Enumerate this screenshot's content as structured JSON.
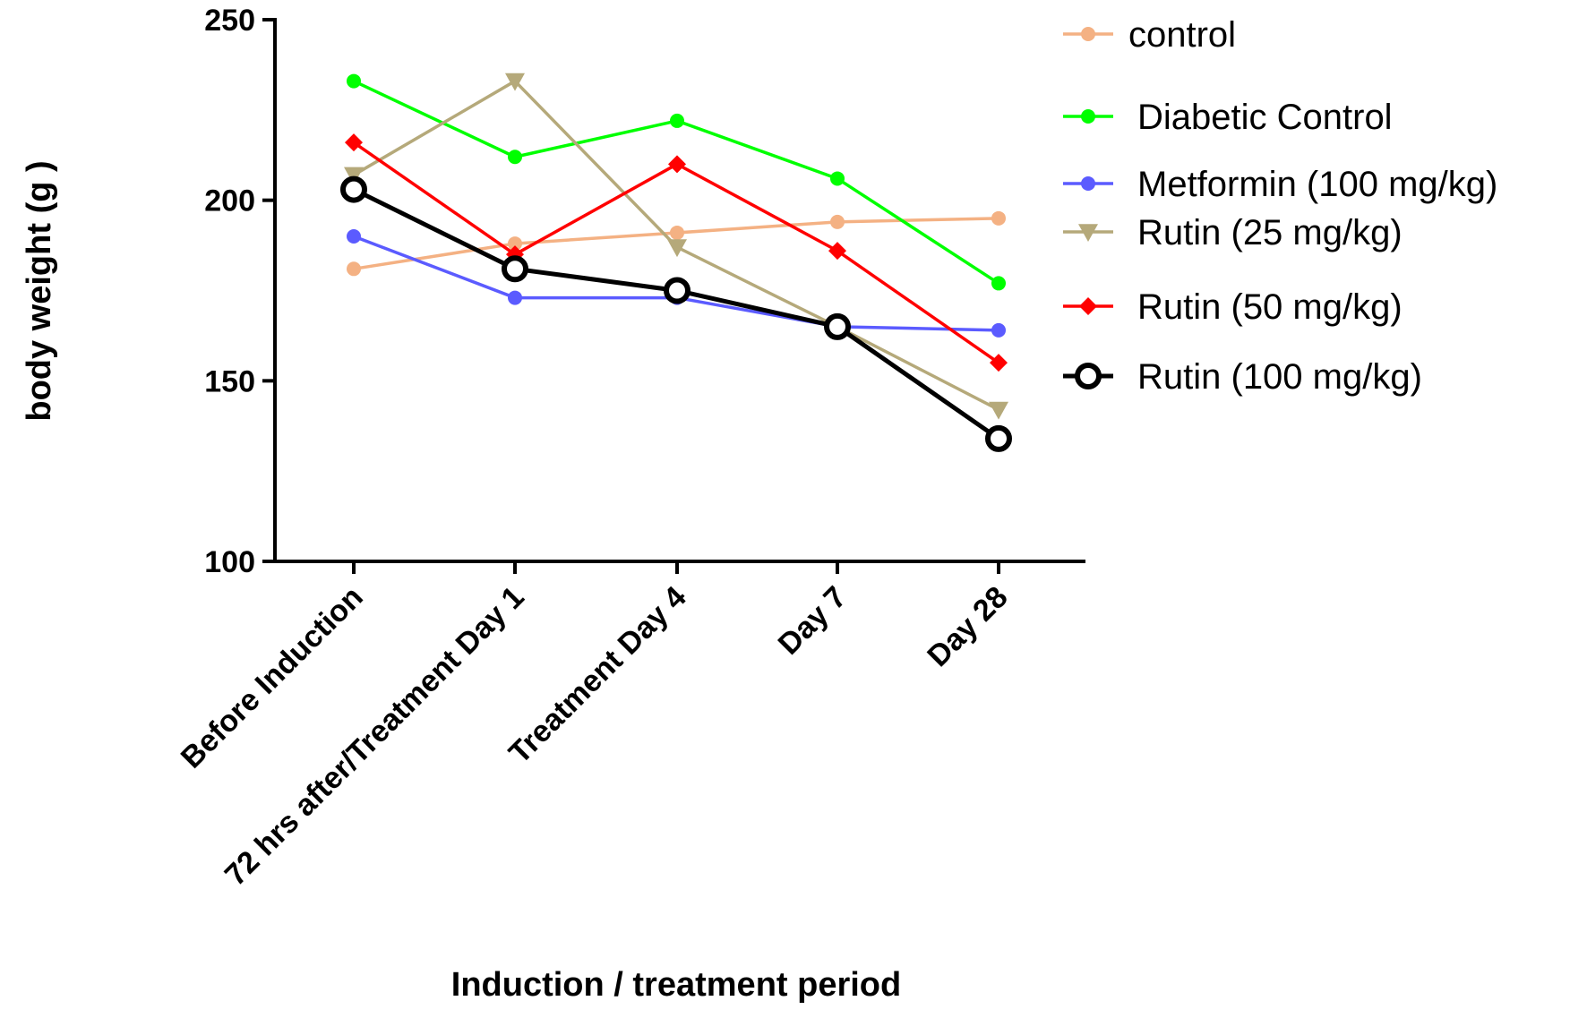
{
  "chart_data": {
    "type": "line",
    "title": "",
    "xlabel": "Induction / treatment period",
    "ylabel": "body weight  (g )",
    "ylim": [
      100,
      250
    ],
    "yticks": [
      100,
      150,
      200,
      250
    ],
    "categories": [
      "Before Induction",
      "72 hrs after/Treatment Day 1",
      "Treatment Day 4",
      "Day 7",
      "Day 28"
    ],
    "legend_position": "top-right",
    "grid": false,
    "series": [
      {
        "name": "control",
        "color": "#f4b183",
        "marker": "circle",
        "values": [
          181,
          188,
          191,
          194,
          195
        ]
      },
      {
        "name": "Diabetic Control",
        "color": "#00ff00",
        "marker": "circle",
        "values": [
          233,
          212,
          222,
          206,
          177
        ]
      },
      {
        "name": "Metformin (100 mg/kg)",
        "color": "#5b5bff",
        "marker": "circle",
        "values": [
          190,
          173,
          173,
          165,
          164
        ]
      },
      {
        "name": "Rutin (25 mg/kg)",
        "color": "#b5a97a",
        "marker": "triangle-down",
        "values": [
          207,
          233,
          187,
          165,
          142
        ]
      },
      {
        "name": "Rutin (50 mg/kg)",
        "color": "#ff0000",
        "marker": "diamond",
        "values": [
          216,
          185,
          210,
          186,
          155
        ]
      },
      {
        "name": "Rutin (100 mg/kg)",
        "color": "#000000",
        "marker": "open-circle",
        "values": [
          203,
          181,
          175,
          165,
          134
        ]
      }
    ]
  }
}
